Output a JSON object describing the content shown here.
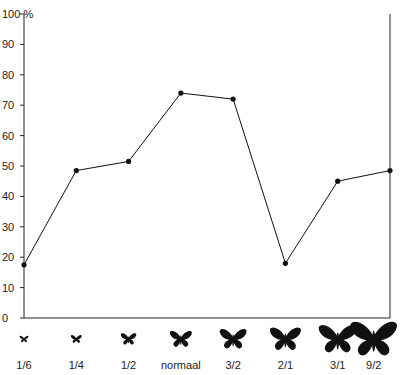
{
  "chart_data": {
    "type": "line",
    "categories": [
      "1/6",
      "1/4",
      "1/2",
      "normaal",
      "3/2",
      "2/1",
      "3/1",
      "9/2"
    ],
    "values": [
      17.5,
      48.5,
      51.5,
      74,
      72,
      18,
      45,
      48.5
    ],
    "color": "#111111",
    "marker": "circle",
    "ylim": [
      0,
      100
    ],
    "yticks": [
      0,
      10,
      20,
      30,
      40,
      50,
      60,
      70,
      80,
      90,
      {
        "value": 100,
        "label": "100 %"
      }
    ],
    "grid": false
  }
}
